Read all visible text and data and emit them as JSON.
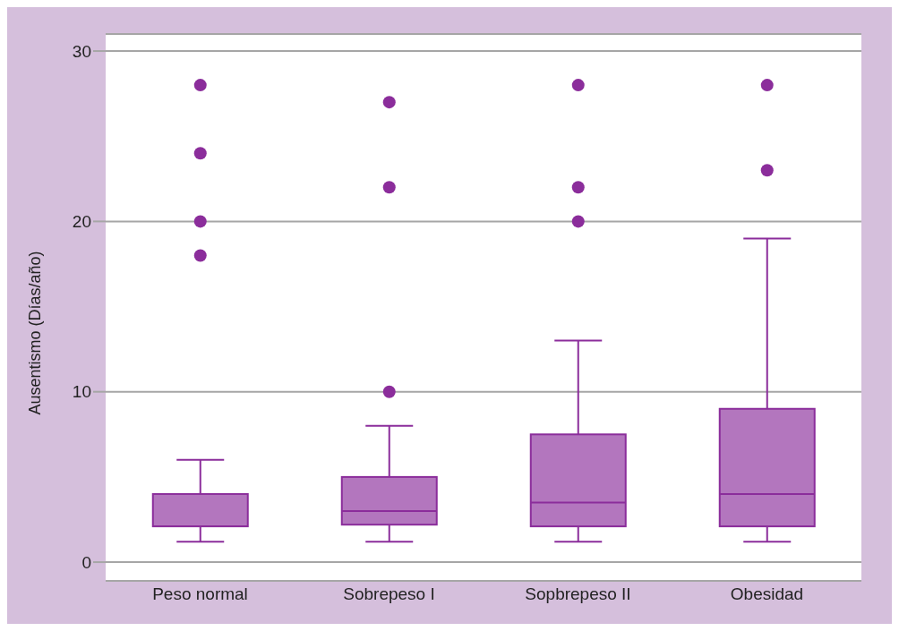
{
  "chart_data": {
    "type": "box",
    "ylabel": "Ausentismo (Días/año)",
    "categories": [
      "Peso normal",
      "Sobrepeso I",
      "Sopbrepeso II",
      "Obesidad"
    ],
    "ylim": [
      -1.1,
      31
    ],
    "yticks": [
      0,
      10,
      20,
      30
    ],
    "grid": "y",
    "series": [
      {
        "color": "#8b2d9b",
        "boxes": [
          {
            "low": 1.2,
            "q1": 2.1,
            "median": 2.1,
            "q3": 4.0,
            "high": 6.0,
            "outliers": [
              18,
              20,
              24,
              28
            ]
          },
          {
            "low": 1.2,
            "q1": 2.2,
            "median": 3.0,
            "q3": 5.0,
            "high": 8.0,
            "outliers": [
              10,
              22,
              27
            ]
          },
          {
            "low": 1.2,
            "q1": 2.1,
            "median": 3.5,
            "q3": 7.5,
            "high": 13,
            "outliers": [
              20,
              22,
              28
            ]
          },
          {
            "low": 1.2,
            "q1": 2.1,
            "median": 4.0,
            "q3": 9.0,
            "high": 19,
            "outliers": [
              23,
              28
            ]
          }
        ]
      }
    ]
  }
}
